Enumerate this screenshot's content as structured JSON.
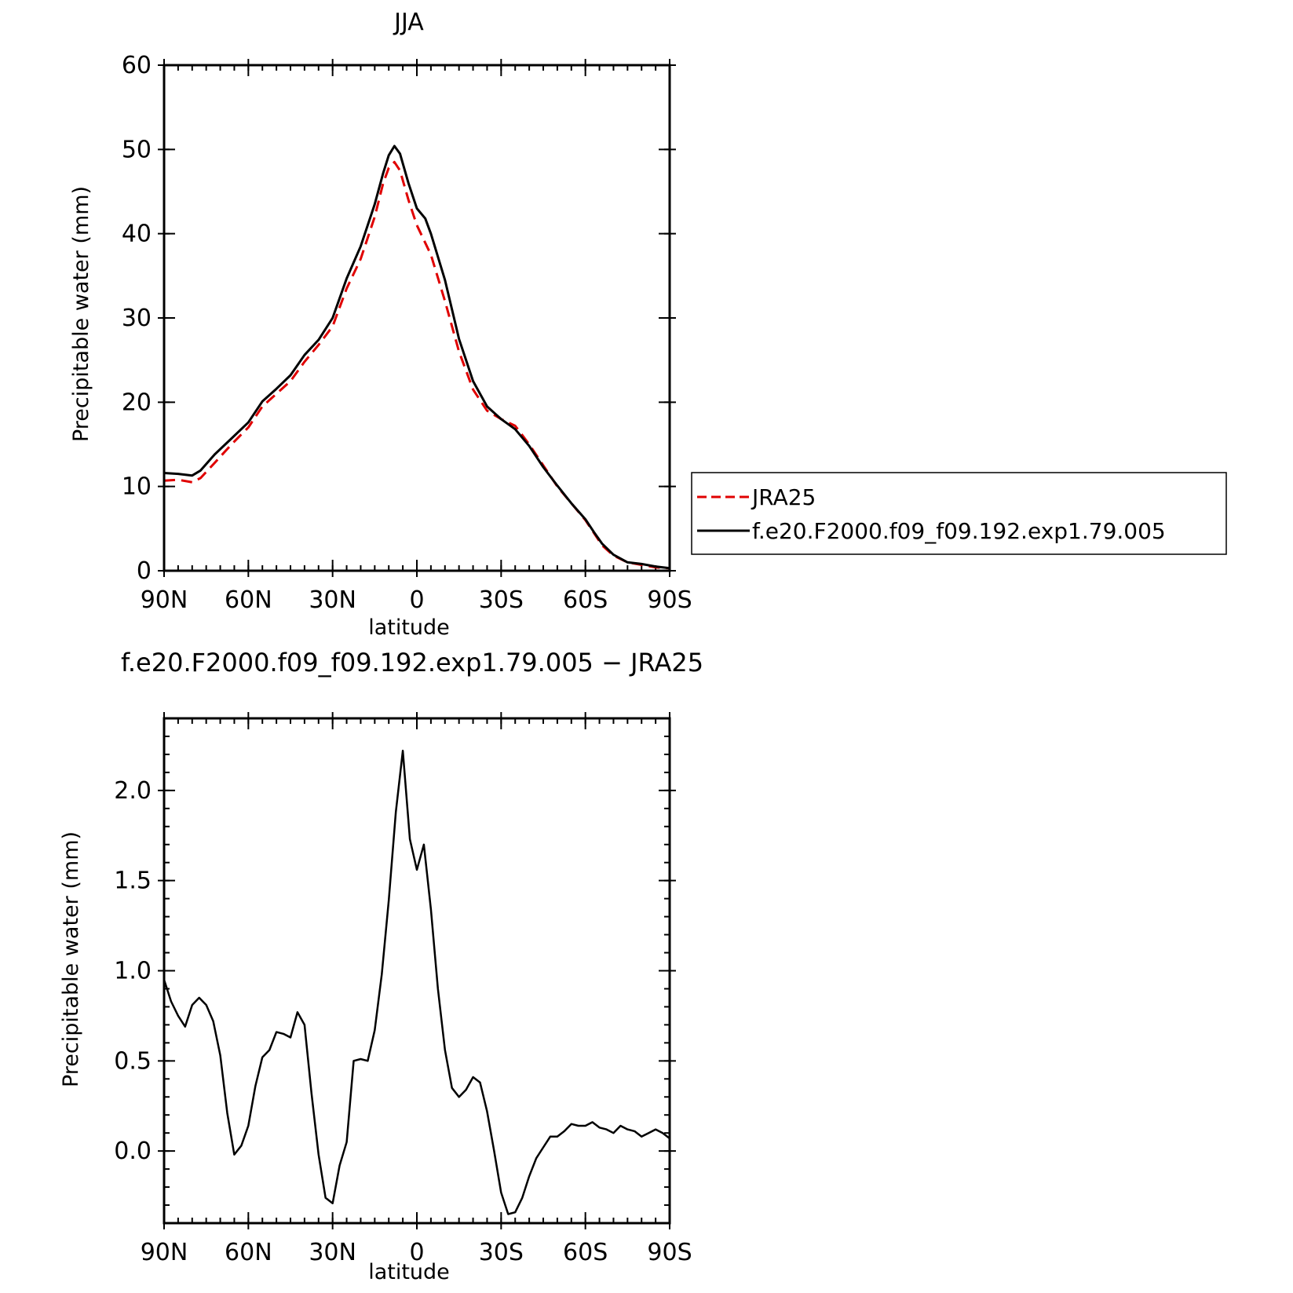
{
  "chart_data": [
    {
      "type": "line",
      "title": "JJA",
      "xlabel": "latitude",
      "ylabel": "Precipitable water (mm)",
      "xlim": [
        90,
        -90
      ],
      "ylim": [
        0,
        60
      ],
      "x_ticks": [
        90,
        60,
        30,
        0,
        -30,
        -60,
        -90
      ],
      "x_tick_labels": [
        "90N",
        "60N",
        "30N",
        "0",
        "30S",
        "60S",
        "90S"
      ],
      "y_ticks": [
        0,
        10,
        20,
        30,
        40,
        50,
        60
      ],
      "y_tick_labels": [
        "0",
        "10",
        "20",
        "30",
        "40",
        "50",
        "60"
      ],
      "legend": "right",
      "series": [
        {
          "name": "JRA25",
          "color": "#e00000",
          "style": "dashed",
          "points": [
            [
              90,
              10.7
            ],
            [
              85,
              10.8
            ],
            [
              80,
              10.5
            ],
            [
              77,
              11.0
            ],
            [
              72,
              12.8
            ],
            [
              66,
              15.0
            ],
            [
              60,
              17.0
            ],
            [
              55,
              19.5
            ],
            [
              50,
              21.0
            ],
            [
              45,
              22.5
            ],
            [
              40,
              24.8
            ],
            [
              35,
              26.8
            ],
            [
              30,
              29.0
            ],
            [
              25,
              33.5
            ],
            [
              20,
              37.0
            ],
            [
              15,
              42.0
            ],
            [
              12,
              46.0
            ],
            [
              10,
              47.8
            ],
            [
              8,
              48.5
            ],
            [
              6,
              47.5
            ],
            [
              3,
              44.0
            ],
            [
              0,
              41.0
            ],
            [
              -5,
              37.5
            ],
            [
              -10,
              32.0
            ],
            [
              -15,
              26.0
            ],
            [
              -20,
              21.5
            ],
            [
              -25,
              19.0
            ],
            [
              -30,
              18.0
            ],
            [
              -35,
              17.2
            ],
            [
              -40,
              15.0
            ],
            [
              -45,
              12.5
            ],
            [
              -50,
              10.0
            ],
            [
              -55,
              8.0
            ],
            [
              -60,
              6.0
            ],
            [
              -63,
              4.5
            ],
            [
              -66,
              3.0
            ],
            [
              -70,
              1.8
            ],
            [
              -75,
              1.0
            ],
            [
              -80,
              0.7
            ],
            [
              -85,
              0.4
            ],
            [
              -90,
              0.3
            ]
          ]
        },
        {
          "name": "f.e20.F2000.f09_f09.192.exp1.79.005",
          "color": "#000000",
          "style": "solid",
          "points": [
            [
              90,
              11.6
            ],
            [
              85,
              11.5
            ],
            [
              80,
              11.3
            ],
            [
              77,
              11.9
            ],
            [
              72,
              13.8
            ],
            [
              66,
              15.7
            ],
            [
              60,
              17.6
            ],
            [
              55,
              20.1
            ],
            [
              50,
              21.6
            ],
            [
              45,
              23.2
            ],
            [
              40,
              25.6
            ],
            [
              35,
              27.4
            ],
            [
              30,
              30.0
            ],
            [
              25,
              34.7
            ],
            [
              20,
              38.5
            ],
            [
              15,
              43.5
            ],
            [
              12,
              47.2
            ],
            [
              10,
              49.3
            ],
            [
              8,
              50.4
            ],
            [
              6,
              49.5
            ],
            [
              3,
              46.0
            ],
            [
              0,
              43.0
            ],
            [
              -3,
              41.8
            ],
            [
              -5,
              40.0
            ],
            [
              -10,
              34.5
            ],
            [
              -15,
              27.5
            ],
            [
              -20,
              22.5
            ],
            [
              -25,
              19.5
            ],
            [
              -30,
              18.0
            ],
            [
              -35,
              16.8
            ],
            [
              -40,
              14.8
            ],
            [
              -45,
              12.3
            ],
            [
              -50,
              10.1
            ],
            [
              -55,
              8.0
            ],
            [
              -60,
              6.1
            ],
            [
              -63,
              4.6
            ],
            [
              -66,
              3.2
            ],
            [
              -70,
              1.9
            ],
            [
              -75,
              1.0
            ],
            [
              -80,
              0.8
            ],
            [
              -85,
              0.5
            ],
            [
              -90,
              0.3
            ]
          ]
        }
      ]
    },
    {
      "type": "line",
      "title": "f.e20.F2000.f09_f09.192.exp1.79.005 − JRA25",
      "xlabel": "latitude",
      "ylabel": "Precipitable water (mm)",
      "xlim": [
        90,
        -90
      ],
      "ylim": [
        -0.4,
        2.4
      ],
      "x_ticks": [
        90,
        60,
        30,
        0,
        -30,
        -60,
        -90
      ],
      "x_tick_labels": [
        "90N",
        "60N",
        "30N",
        "0",
        "30S",
        "60S",
        "90S"
      ],
      "y_ticks": [
        0.0,
        0.5,
        1.0,
        1.5,
        2.0
      ],
      "y_tick_labels": [
        "0.0",
        "0.5",
        "1.0",
        "1.5",
        "2.0"
      ],
      "series": [
        {
          "color": "#000000",
          "style": "solid",
          "points": [
            [
              90,
              0.95
            ],
            [
              87.5,
              0.83
            ],
            [
              85,
              0.75
            ],
            [
              82.5,
              0.69
            ],
            [
              80,
              0.81
            ],
            [
              77.5,
              0.85
            ],
            [
              75,
              0.81
            ],
            [
              72.5,
              0.72
            ],
            [
              70,
              0.53
            ],
            [
              67.5,
              0.21
            ],
            [
              65,
              -0.02
            ],
            [
              62.5,
              0.03
            ],
            [
              60,
              0.14
            ],
            [
              57.5,
              0.36
            ],
            [
              55,
              0.52
            ],
            [
              52.5,
              0.56
            ],
            [
              50,
              0.66
            ],
            [
              47.5,
              0.65
            ],
            [
              45,
              0.63
            ],
            [
              42.5,
              0.77
            ],
            [
              40,
              0.7
            ],
            [
              37.5,
              0.32
            ],
            [
              35,
              -0.02
            ],
            [
              32.5,
              -0.26
            ],
            [
              30,
              -0.29
            ],
            [
              27.5,
              -0.08
            ],
            [
              25,
              0.05
            ],
            [
              22.5,
              0.5
            ],
            [
              20,
              0.51
            ],
            [
              17.5,
              0.5
            ],
            [
              15,
              0.67
            ],
            [
              12.5,
              0.98
            ],
            [
              10,
              1.39
            ],
            [
              7.5,
              1.88
            ],
            [
              5,
              2.22
            ],
            [
              2.5,
              1.73
            ],
            [
              0,
              1.56
            ],
            [
              -2.5,
              1.7
            ],
            [
              -5,
              1.34
            ],
            [
              -7.5,
              0.9
            ],
            [
              -10,
              0.56
            ],
            [
              -12.5,
              0.35
            ],
            [
              -15,
              0.3
            ],
            [
              -17.5,
              0.34
            ],
            [
              -20,
              0.41
            ],
            [
              -22.5,
              0.38
            ],
            [
              -25,
              0.22
            ],
            [
              -27.5,
              0.0
            ],
            [
              -30,
              -0.23
            ],
            [
              -32.5,
              -0.35
            ],
            [
              -35,
              -0.34
            ],
            [
              -37.5,
              -0.26
            ],
            [
              -40,
              -0.14
            ],
            [
              -42.5,
              -0.04
            ],
            [
              -45,
              0.02
            ],
            [
              -47.5,
              0.08
            ],
            [
              -50,
              0.08
            ],
            [
              -52.5,
              0.11
            ],
            [
              -55,
              0.15
            ],
            [
              -57.5,
              0.14
            ],
            [
              -60,
              0.14
            ],
            [
              -62.5,
              0.16
            ],
            [
              -65,
              0.13
            ],
            [
              -67.5,
              0.12
            ],
            [
              -70,
              0.1
            ],
            [
              -72.5,
              0.14
            ],
            [
              -75,
              0.12
            ],
            [
              -77.5,
              0.11
            ],
            [
              -80,
              0.08
            ],
            [
              -82.5,
              0.1
            ],
            [
              -85,
              0.12
            ],
            [
              -87.5,
              0.1
            ],
            [
              -90,
              0.07
            ]
          ]
        }
      ]
    }
  ]
}
